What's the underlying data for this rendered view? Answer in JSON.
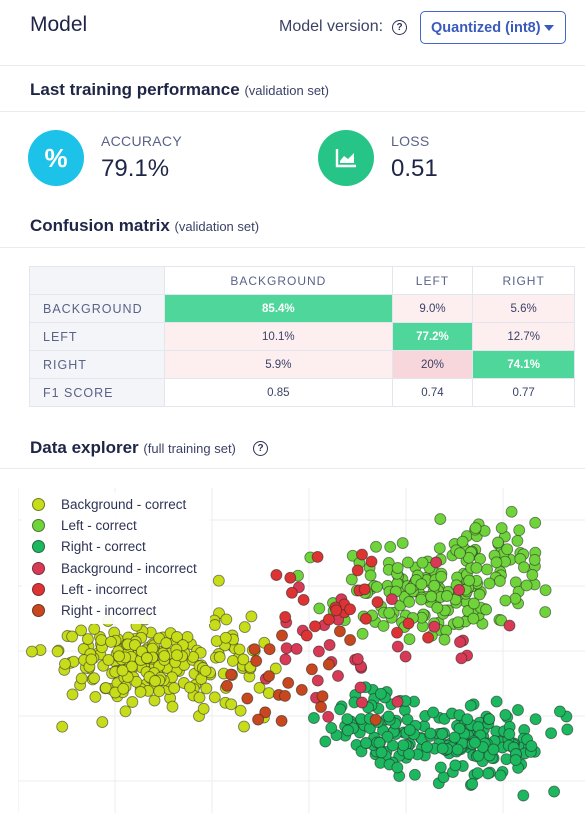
{
  "header": {
    "title": "Model",
    "version_label": "Model version:",
    "version_value": "Quantized (int8)"
  },
  "performance": {
    "heading": "Last training performance",
    "subheading": "(validation set)",
    "accuracy": {
      "label": "ACCURACY",
      "value": "79.1%",
      "icon": "percent-icon",
      "color": "#1cc2e8"
    },
    "loss": {
      "label": "LOSS",
      "value": "0.51",
      "icon": "trend-chart-icon",
      "color": "#27c488"
    }
  },
  "confusion": {
    "heading": "Confusion matrix",
    "subheading": "(validation set)",
    "columns": [
      "BACKGROUND",
      "LEFT",
      "RIGHT"
    ],
    "rows": [
      {
        "label": "BACKGROUND",
        "cells": [
          "85.4%",
          "9.0%",
          "5.6%"
        ]
      },
      {
        "label": "LEFT",
        "cells": [
          "10.1%",
          "77.2%",
          "12.7%"
        ]
      },
      {
        "label": "RIGHT",
        "cells": [
          "5.9%",
          "20%",
          "74.1%"
        ]
      }
    ],
    "f1": {
      "label": "F1 SCORE",
      "cells": [
        "0.85",
        "0.74",
        "0.77"
      ]
    },
    "colors": {
      "correct": "#4fd79b",
      "error_light": "#fdeef0",
      "error_mid": "#f8d7dc"
    }
  },
  "explorer": {
    "heading": "Data explorer",
    "subheading": "(full training set)",
    "legend": [
      {
        "label": "Background - correct",
        "color": "#c7dd1a"
      },
      {
        "label": "Left - correct",
        "color": "#6fd43a"
      },
      {
        "label": "Right - correct",
        "color": "#1bb85f"
      },
      {
        "label": "Background - incorrect",
        "color": "#d83a55"
      },
      {
        "label": "Left - incorrect",
        "color": "#dd3333"
      },
      {
        "label": "Right - incorrect",
        "color": "#c8471e"
      }
    ]
  }
}
